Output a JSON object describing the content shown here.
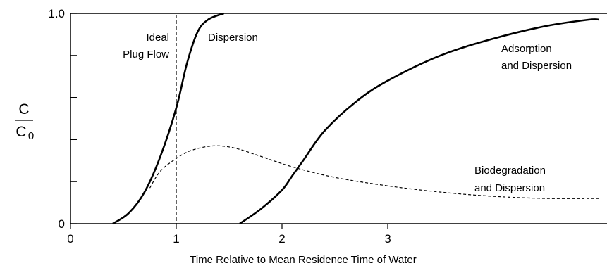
{
  "chart_data": {
    "type": "line",
    "title": "",
    "xlabel": "Time Relative to Mean Residence Time of Water",
    "ylabel": {
      "numerator": "C",
      "denominator": "C",
      "denominator_subscript": "0"
    },
    "xlim": [
      0,
      5
    ],
    "ylim": [
      0,
      1.0
    ],
    "x_ticks": [
      0,
      1,
      2,
      3
    ],
    "y_tick_labels": [
      "0",
      "1.0"
    ],
    "y_minor_ticks": [
      0.2,
      0.4,
      0.6,
      0.8
    ],
    "grid": false,
    "ideal_plug_flow": {
      "x": 1.0,
      "label_line1": "Ideal",
      "label_line2": "Plug Flow",
      "style": "dashed"
    },
    "series": [
      {
        "name": "Dispersion",
        "style": "solid",
        "points": [
          [
            0.4,
            0.0
          ],
          [
            0.55,
            0.05
          ],
          [
            0.7,
            0.15
          ],
          [
            0.85,
            0.32
          ],
          [
            1.0,
            0.55
          ],
          [
            1.1,
            0.76
          ],
          [
            1.2,
            0.91
          ],
          [
            1.3,
            0.97
          ],
          [
            1.45,
            1.0
          ]
        ]
      },
      {
        "name": "Adsorption and Dispersion",
        "label_lines": [
          "Adsorption",
          "and Dispersion"
        ],
        "style": "solid",
        "points": [
          [
            1.6,
            0.0
          ],
          [
            1.8,
            0.07
          ],
          [
            2.0,
            0.16
          ],
          [
            2.1,
            0.23
          ],
          [
            2.2,
            0.3
          ],
          [
            2.4,
            0.44
          ],
          [
            2.7,
            0.58
          ],
          [
            3.0,
            0.68
          ],
          [
            3.5,
            0.8
          ],
          [
            4.0,
            0.88
          ],
          [
            4.5,
            0.94
          ],
          [
            4.9,
            0.97
          ],
          [
            5.0,
            0.97
          ]
        ]
      },
      {
        "name": "Biodegradation and Dispersion",
        "label_lines": [
          "Biodegradation",
          "and Dispersion"
        ],
        "style": "dashed",
        "points": [
          [
            0.75,
            0.17
          ],
          [
            0.85,
            0.25
          ],
          [
            1.0,
            0.31
          ],
          [
            1.15,
            0.35
          ],
          [
            1.35,
            0.37
          ],
          [
            1.55,
            0.36
          ],
          [
            1.8,
            0.32
          ],
          [
            2.1,
            0.27
          ],
          [
            2.5,
            0.22
          ],
          [
            3.0,
            0.18
          ],
          [
            3.5,
            0.15
          ],
          [
            4.0,
            0.13
          ],
          [
            4.5,
            0.12
          ],
          [
            5.0,
            0.12
          ]
        ]
      }
    ]
  }
}
